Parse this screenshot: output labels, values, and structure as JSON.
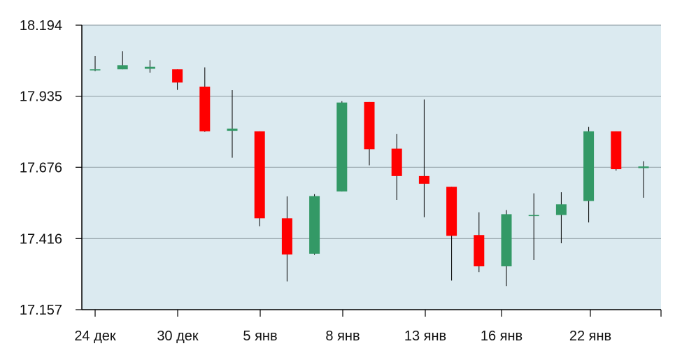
{
  "chart_data": {
    "type": "candlestick",
    "title": "",
    "xlabel": "",
    "ylabel": "",
    "ylim": [
      17.157,
      18.194
    ],
    "yticks": [
      "18.194",
      "17.935",
      "17.676",
      "17.416",
      "17.157"
    ],
    "xtick_labels": [
      "24 дек",
      "30 дек",
      "5 янв",
      "8 янв",
      "13 янв",
      "16 янв",
      "22 янв"
    ],
    "grid": true,
    "legend": "none",
    "candles": [
      {
        "open": 18.033,
        "close": 18.033,
        "high": 18.082,
        "low": 18.026
      },
      {
        "open": 18.033,
        "close": 18.048,
        "high": 18.099,
        "low": 18.033
      },
      {
        "open": 18.035,
        "close": 18.042,
        "high": 18.066,
        "low": 18.021
      },
      {
        "open": 18.033,
        "close": 17.985,
        "high": 18.033,
        "low": 17.958
      },
      {
        "open": 17.97,
        "close": 17.807,
        "high": 18.04,
        "low": 17.805
      },
      {
        "open": 17.809,
        "close": 17.817,
        "high": 17.957,
        "low": 17.711
      },
      {
        "open": 17.807,
        "close": 17.49,
        "high": 17.807,
        "low": 17.461
      },
      {
        "open": 17.49,
        "close": 17.358,
        "high": 17.57,
        "low": 17.26
      },
      {
        "open": 17.361,
        "close": 17.571,
        "high": 17.578,
        "low": 17.357
      },
      {
        "open": 17.588,
        "close": 17.912,
        "high": 17.917,
        "low": 17.588
      },
      {
        "open": 17.914,
        "close": 17.742,
        "high": 17.914,
        "low": 17.683
      },
      {
        "open": 17.744,
        "close": 17.644,
        "high": 17.797,
        "low": 17.557
      },
      {
        "open": 17.644,
        "close": 17.616,
        "high": 17.923,
        "low": 17.494
      },
      {
        "open": 17.605,
        "close": 17.426,
        "high": 17.605,
        "low": 17.263
      },
      {
        "open": 17.429,
        "close": 17.315,
        "high": 17.512,
        "low": 17.294
      },
      {
        "open": 17.315,
        "close": 17.505,
        "high": 17.52,
        "low": 17.243
      },
      {
        "open": 17.502,
        "close": 17.502,
        "high": 17.581,
        "low": 17.338
      },
      {
        "open": 17.502,
        "close": 17.541,
        "high": 17.585,
        "low": 17.399
      },
      {
        "open": 17.553,
        "close": 17.807,
        "high": 17.823,
        "low": 17.475
      },
      {
        "open": 17.807,
        "close": 17.669,
        "high": 17.807,
        "low": 17.664
      },
      {
        "open": 17.673,
        "close": 17.679,
        "high": 17.698,
        "low": 17.565
      }
    ],
    "colors": {
      "up": "#339966",
      "down": "#ff0000",
      "plot_background": "#dbeaf0",
      "gridline": "#9aa8ae",
      "axis": "#000000",
      "wick": "#000000",
      "label": "#111111"
    }
  }
}
